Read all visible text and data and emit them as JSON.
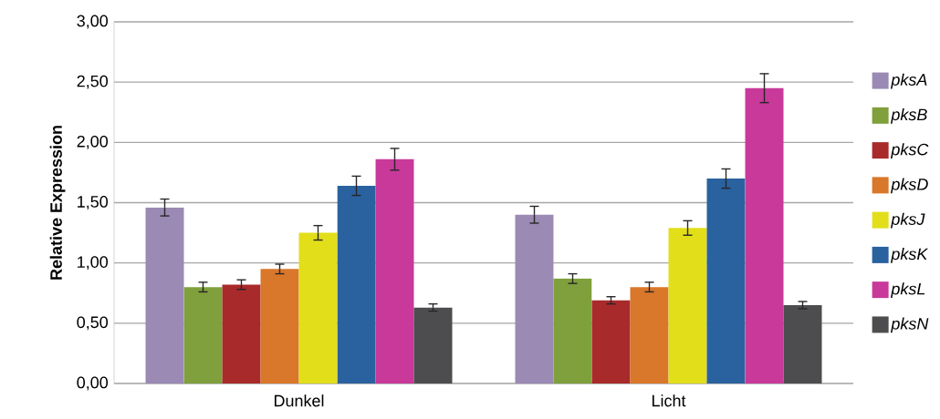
{
  "chart_data": {
    "type": "bar",
    "ylabel": "Relative Expression",
    "categories": [
      "Dunkel",
      "Licht"
    ],
    "series": [
      {
        "name": "pksA",
        "color": "#9a8ab4",
        "values": [
          1.46,
          1.4
        ],
        "errors": [
          0.07,
          0.07
        ]
      },
      {
        "name": "pksB",
        "color": "#7fa03c",
        "values": [
          0.8,
          0.87
        ],
        "errors": [
          0.04,
          0.04
        ]
      },
      {
        "name": "pksC",
        "color": "#a92a2a",
        "values": [
          0.82,
          0.69
        ],
        "errors": [
          0.04,
          0.03
        ]
      },
      {
        "name": "pksD",
        "color": "#d9772a",
        "values": [
          0.95,
          0.8
        ],
        "errors": [
          0.04,
          0.04
        ]
      },
      {
        "name": "pksJ",
        "color": "#e2de1a",
        "values": [
          1.25,
          1.29
        ],
        "errors": [
          0.06,
          0.06
        ]
      },
      {
        "name": "pksK",
        "color": "#2a62a0",
        "values": [
          1.64,
          1.7
        ],
        "errors": [
          0.08,
          0.08
        ]
      },
      {
        "name": "pksL",
        "color": "#c8399a",
        "values": [
          1.86,
          2.45
        ],
        "errors": [
          0.09,
          0.12
        ]
      },
      {
        "name": "pksN",
        "color": "#4d4d4f",
        "values": [
          0.63,
          0.65
        ],
        "errors": [
          0.03,
          0.03
        ]
      }
    ],
    "ylim": [
      0,
      3
    ],
    "yticks": [
      {
        "value": 0,
        "label": "0,00"
      },
      {
        "value": 0.5,
        "label": "0,50"
      },
      {
        "value": 1,
        "label": "1,00"
      },
      {
        "value": 1.5,
        "label": "1,50"
      },
      {
        "value": 2,
        "label": "2,00"
      },
      {
        "value": 2.5,
        "label": "2,50"
      },
      {
        "value": 3,
        "label": "3,00"
      }
    ],
    "grid": "y",
    "legend": "right"
  }
}
